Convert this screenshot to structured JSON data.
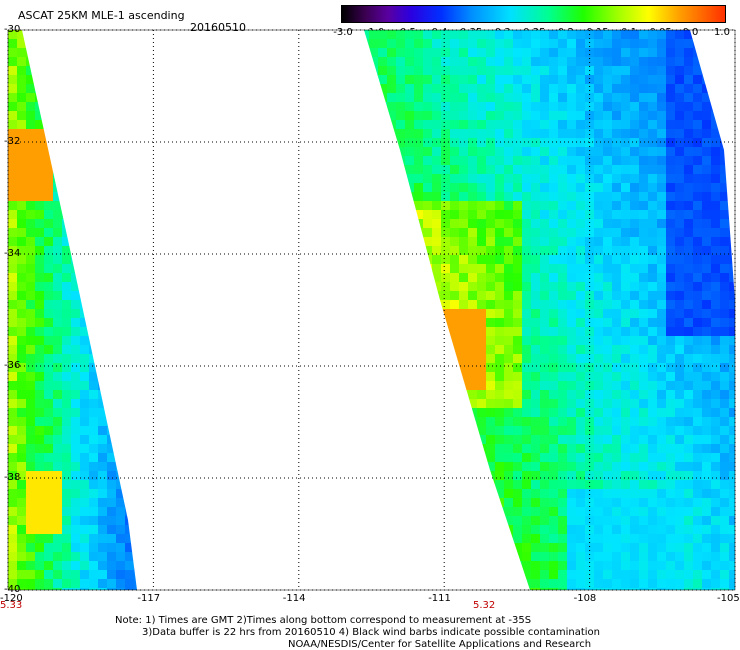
{
  "header": {
    "title": "ASCAT 25KM MLE-1 ascending",
    "date": "20160510"
  },
  "colorbar": {
    "labels": [
      "-3.0",
      "-1.0",
      "-0.5",
      "-0.4",
      "-0.35",
      "-0.3",
      "-0.25",
      "-0.2",
      "-0.15",
      "-0.1",
      "-0.05",
      "0.0",
      "1.0"
    ]
  },
  "axes": {
    "lon_labels": [
      "-120",
      "-117",
      "-114",
      "-111",
      "-108",
      "-105"
    ],
    "lat_labels": [
      "-30",
      "-32",
      "-34",
      "-36",
      "-38",
      "-40"
    ],
    "lon_range": [
      -120,
      -105
    ],
    "lat_range": [
      -30,
      -40
    ],
    "grid": "dotted"
  },
  "swath_times": {
    "left": "5.33",
    "right": "5.32"
  },
  "notes": {
    "line1": "Note: 1) Times are GMT 2)Times along bottom correspond to measurement at -35S",
    "line2": "3)Data buffer is 22 hrs from 20160510 4) Black wind barbs indicate possible contamination",
    "line3": "NOAA/NESDIS/Center for Satellite Applications and Research"
  },
  "colors": {
    "grid": "#000000",
    "time_label": "#c00000"
  }
}
